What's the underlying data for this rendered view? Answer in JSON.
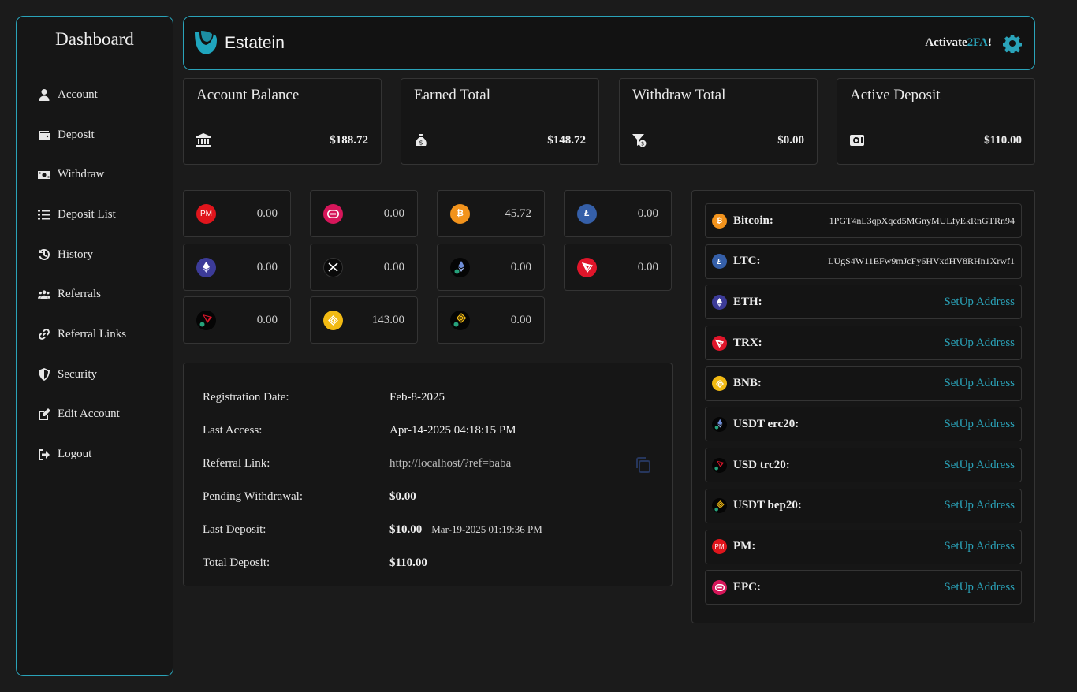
{
  "sidebar": {
    "title": "Dashboard",
    "items": [
      {
        "label": "Account",
        "icon": "user-icon"
      },
      {
        "label": "Deposit",
        "icon": "wallet-icon"
      },
      {
        "label": "Withdraw",
        "icon": "money-icon"
      },
      {
        "label": "Deposit List",
        "icon": "list-icon"
      },
      {
        "label": "History",
        "icon": "history-icon"
      },
      {
        "label": "Referrals",
        "icon": "users-icon"
      },
      {
        "label": "Referral Links",
        "icon": "link-icon"
      },
      {
        "label": "Security",
        "icon": "shield-icon"
      },
      {
        "label": "Edit Account",
        "icon": "edit-icon"
      },
      {
        "label": "Logout",
        "icon": "logout-icon"
      }
    ]
  },
  "header": {
    "brand": "Estatein",
    "activate_prefix": "Activate ",
    "activate_highlight": "2FA",
    "activate_suffix": "!"
  },
  "stats": [
    {
      "title": "Account Balance",
      "value": "$188.72",
      "icon": "bank-icon"
    },
    {
      "title": "Earned Total",
      "value": "$148.72",
      "icon": "money-bag-icon"
    },
    {
      "title": "Withdraw Total",
      "value": "$0.00",
      "icon": "funnel-dollar-icon"
    },
    {
      "title": "Active Deposit",
      "value": "$110.00",
      "icon": "safe-icon"
    }
  ],
  "balances": [
    {
      "coin": "PM",
      "amount": "0.00"
    },
    {
      "coin": "EPC",
      "amount": "0.00"
    },
    {
      "coin": "BTC",
      "amount": "45.72"
    },
    {
      "coin": "LTC",
      "amount": "0.00"
    },
    {
      "coin": "ETH",
      "amount": "0.00"
    },
    {
      "coin": "XRP",
      "amount": "0.00"
    },
    {
      "coin": "USDT erc20",
      "amount": "0.00"
    },
    {
      "coin": "TRX",
      "amount": "0.00"
    },
    {
      "coin": "USD trc20",
      "amount": "0.00"
    },
    {
      "coin": "BNB",
      "amount": "143.00"
    },
    {
      "coin": "USDT bep20",
      "amount": "0.00"
    }
  ],
  "info": {
    "registration_label": "Registration Date:",
    "registration_value": "Feb-8-2025",
    "last_access_label": "Last Access:",
    "last_access_value": "Apr-14-2025 04:18:15 PM",
    "referral_label": "Referral Link:",
    "referral_value": "http://localhost/?ref=baba",
    "pending_label": "Pending Withdrawal:",
    "pending_value": "$0.00",
    "last_deposit_label": "Last Deposit:",
    "last_deposit_value": "$10.00",
    "last_deposit_date": "Mar-19-2025 01:19:36 PM",
    "total_deposit_label": "Total Deposit:",
    "total_deposit_value": "$110.00"
  },
  "wallets": [
    {
      "label": "Bitcoin:",
      "address": "1PGT4nL3qpXqcd5MGnyMULfyEkRnGTRn94"
    },
    {
      "label": "LTC:",
      "address": "LUgS4W11EFw9mJcFy6HVxdHV8RHn1Xrwf1"
    },
    {
      "label": "ETH:",
      "action": "SetUp Address"
    },
    {
      "label": "TRX:",
      "action": "SetUp Address"
    },
    {
      "label": "BNB:",
      "action": "SetUp Address"
    },
    {
      "label": "USDT erc20:",
      "action": "SetUp Address"
    },
    {
      "label": "USD trc20:",
      "action": "SetUp Address"
    },
    {
      "label": "USDT bep20:",
      "action": "SetUp Address"
    },
    {
      "label": "PM:",
      "action": "SetUp Address"
    },
    {
      "label": "EPC:",
      "action": "SetUp Address"
    }
  ],
  "colors": {
    "accent": "#2aa3b9",
    "background": "#1b1b1b",
    "panel": "#161616"
  }
}
